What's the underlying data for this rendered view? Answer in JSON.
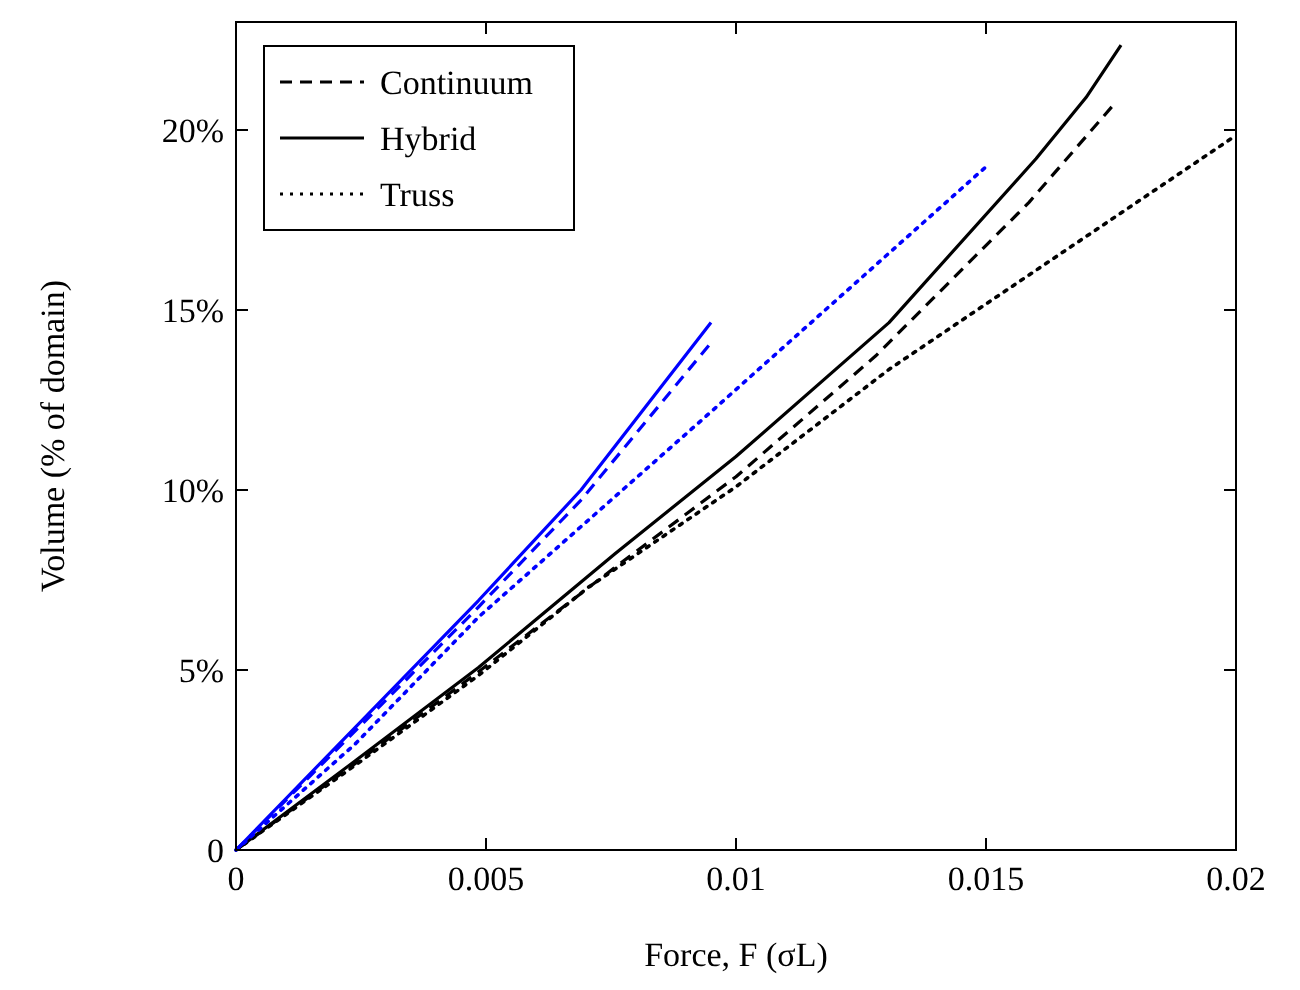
{
  "chart_data": {
    "type": "line",
    "xlabel": "Force, F (σL)",
    "ylabel": "Volume (% of domain)",
    "xlim": [
      0,
      0.02
    ],
    "ylim": [
      0,
      23
    ],
    "xticks": [
      0,
      0.005,
      0.01,
      0.015,
      0.02
    ],
    "yticks": [
      0,
      {
        "value": 5,
        "label": "5%"
      },
      {
        "value": 10,
        "label": "10%"
      },
      {
        "value": 15,
        "label": "15%"
      },
      {
        "value": 20,
        "label": "20%"
      }
    ],
    "grid": false,
    "legend": "top left",
    "marker": "none",
    "series": [
      {
        "name": "Continuum",
        "color": "#000000",
        "line_style": "dashed",
        "x": [
          0,
          0.00238,
          0.00485,
          0.00758,
          0.01,
          0.01279,
          0.01586,
          0.0176
        ],
        "values": [
          0,
          2.4,
          4.95,
          7.85,
          10.37,
          13.72,
          17.99,
          20.78
        ]
      },
      {
        "name": "Hybrid",
        "color": "#000000",
        "line_style": "solid",
        "x": [
          0,
          0.00238,
          0.00485,
          0.00758,
          0.01,
          0.01306,
          0.016,
          0.017,
          0.0177
        ],
        "values": [
          0,
          2.47,
          5.07,
          8.23,
          10.93,
          14.65,
          19.2,
          20.9,
          22.36
        ]
      },
      {
        "name": "Truss",
        "color": "#000000",
        "line_style": "dotted",
        "x": [
          0,
          0.00238,
          0.00485,
          0.00705,
          0.01,
          0.01306,
          0.02
        ],
        "values": [
          0,
          2.35,
          4.85,
          7.3,
          10.09,
          13.35,
          19.85
        ]
      },
      {
        "color": "#0000ff",
        "line_style": "dashed",
        "x": [
          0,
          0.00238,
          0.00485,
          0.0069,
          0.0095
        ],
        "values": [
          0,
          3.3,
          6.75,
          9.72,
          14.09
        ]
      },
      {
        "color": "#0000ff",
        "line_style": "solid",
        "x": [
          0,
          0.00238,
          0.00485,
          0.0069,
          0.0095
        ],
        "values": [
          0,
          3.4,
          6.93,
          10.0,
          14.65
        ]
      },
      {
        "color": "#0000ff",
        "line_style": "dotted",
        "x": [
          0,
          0.00238,
          0.00485,
          0.00932,
          0.015
        ],
        "values": [
          0,
          2.94,
          6.47,
          11.95,
          18.98
        ]
      }
    ]
  }
}
